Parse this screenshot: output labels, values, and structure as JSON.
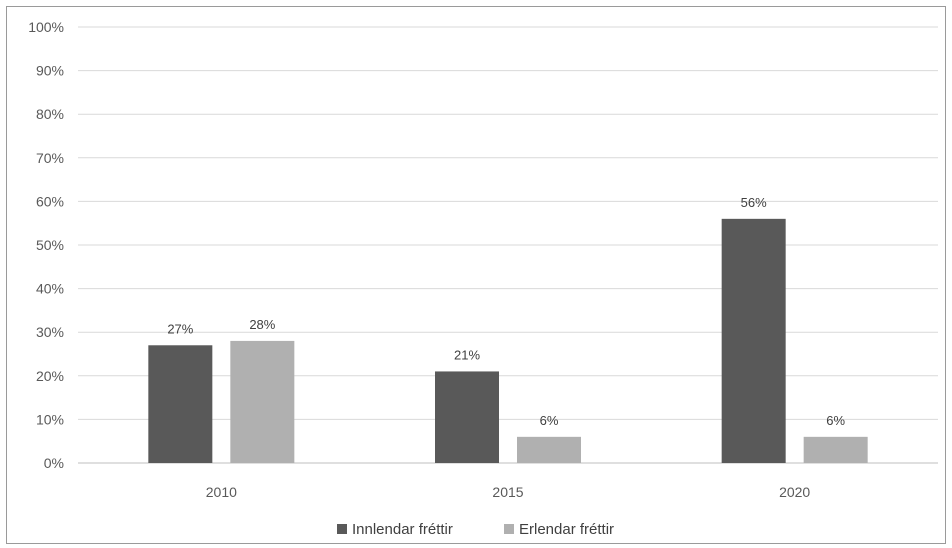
{
  "chart_data": {
    "type": "bar",
    "categories": [
      "2010",
      "2015",
      "2020"
    ],
    "series": [
      {
        "name": "Innlendar fréttir",
        "values": [
          27,
          21,
          56
        ],
        "labels": [
          "27%",
          "21%",
          "56%"
        ],
        "color": "#595959"
      },
      {
        "name": "Erlendar fréttir",
        "values": [
          28,
          6,
          6
        ],
        "labels": [
          "28%",
          "6%",
          "6%"
        ],
        "color": "#b0b0b0"
      }
    ],
    "ylim": [
      0,
      100
    ],
    "yticks": [
      "0%",
      "10%",
      "20%",
      "30%",
      "40%",
      "50%",
      "60%",
      "70%",
      "80%",
      "90%",
      "100%"
    ],
    "grid": true,
    "legend_position": "bottom",
    "gridline_color": "#d9d9d9"
  }
}
